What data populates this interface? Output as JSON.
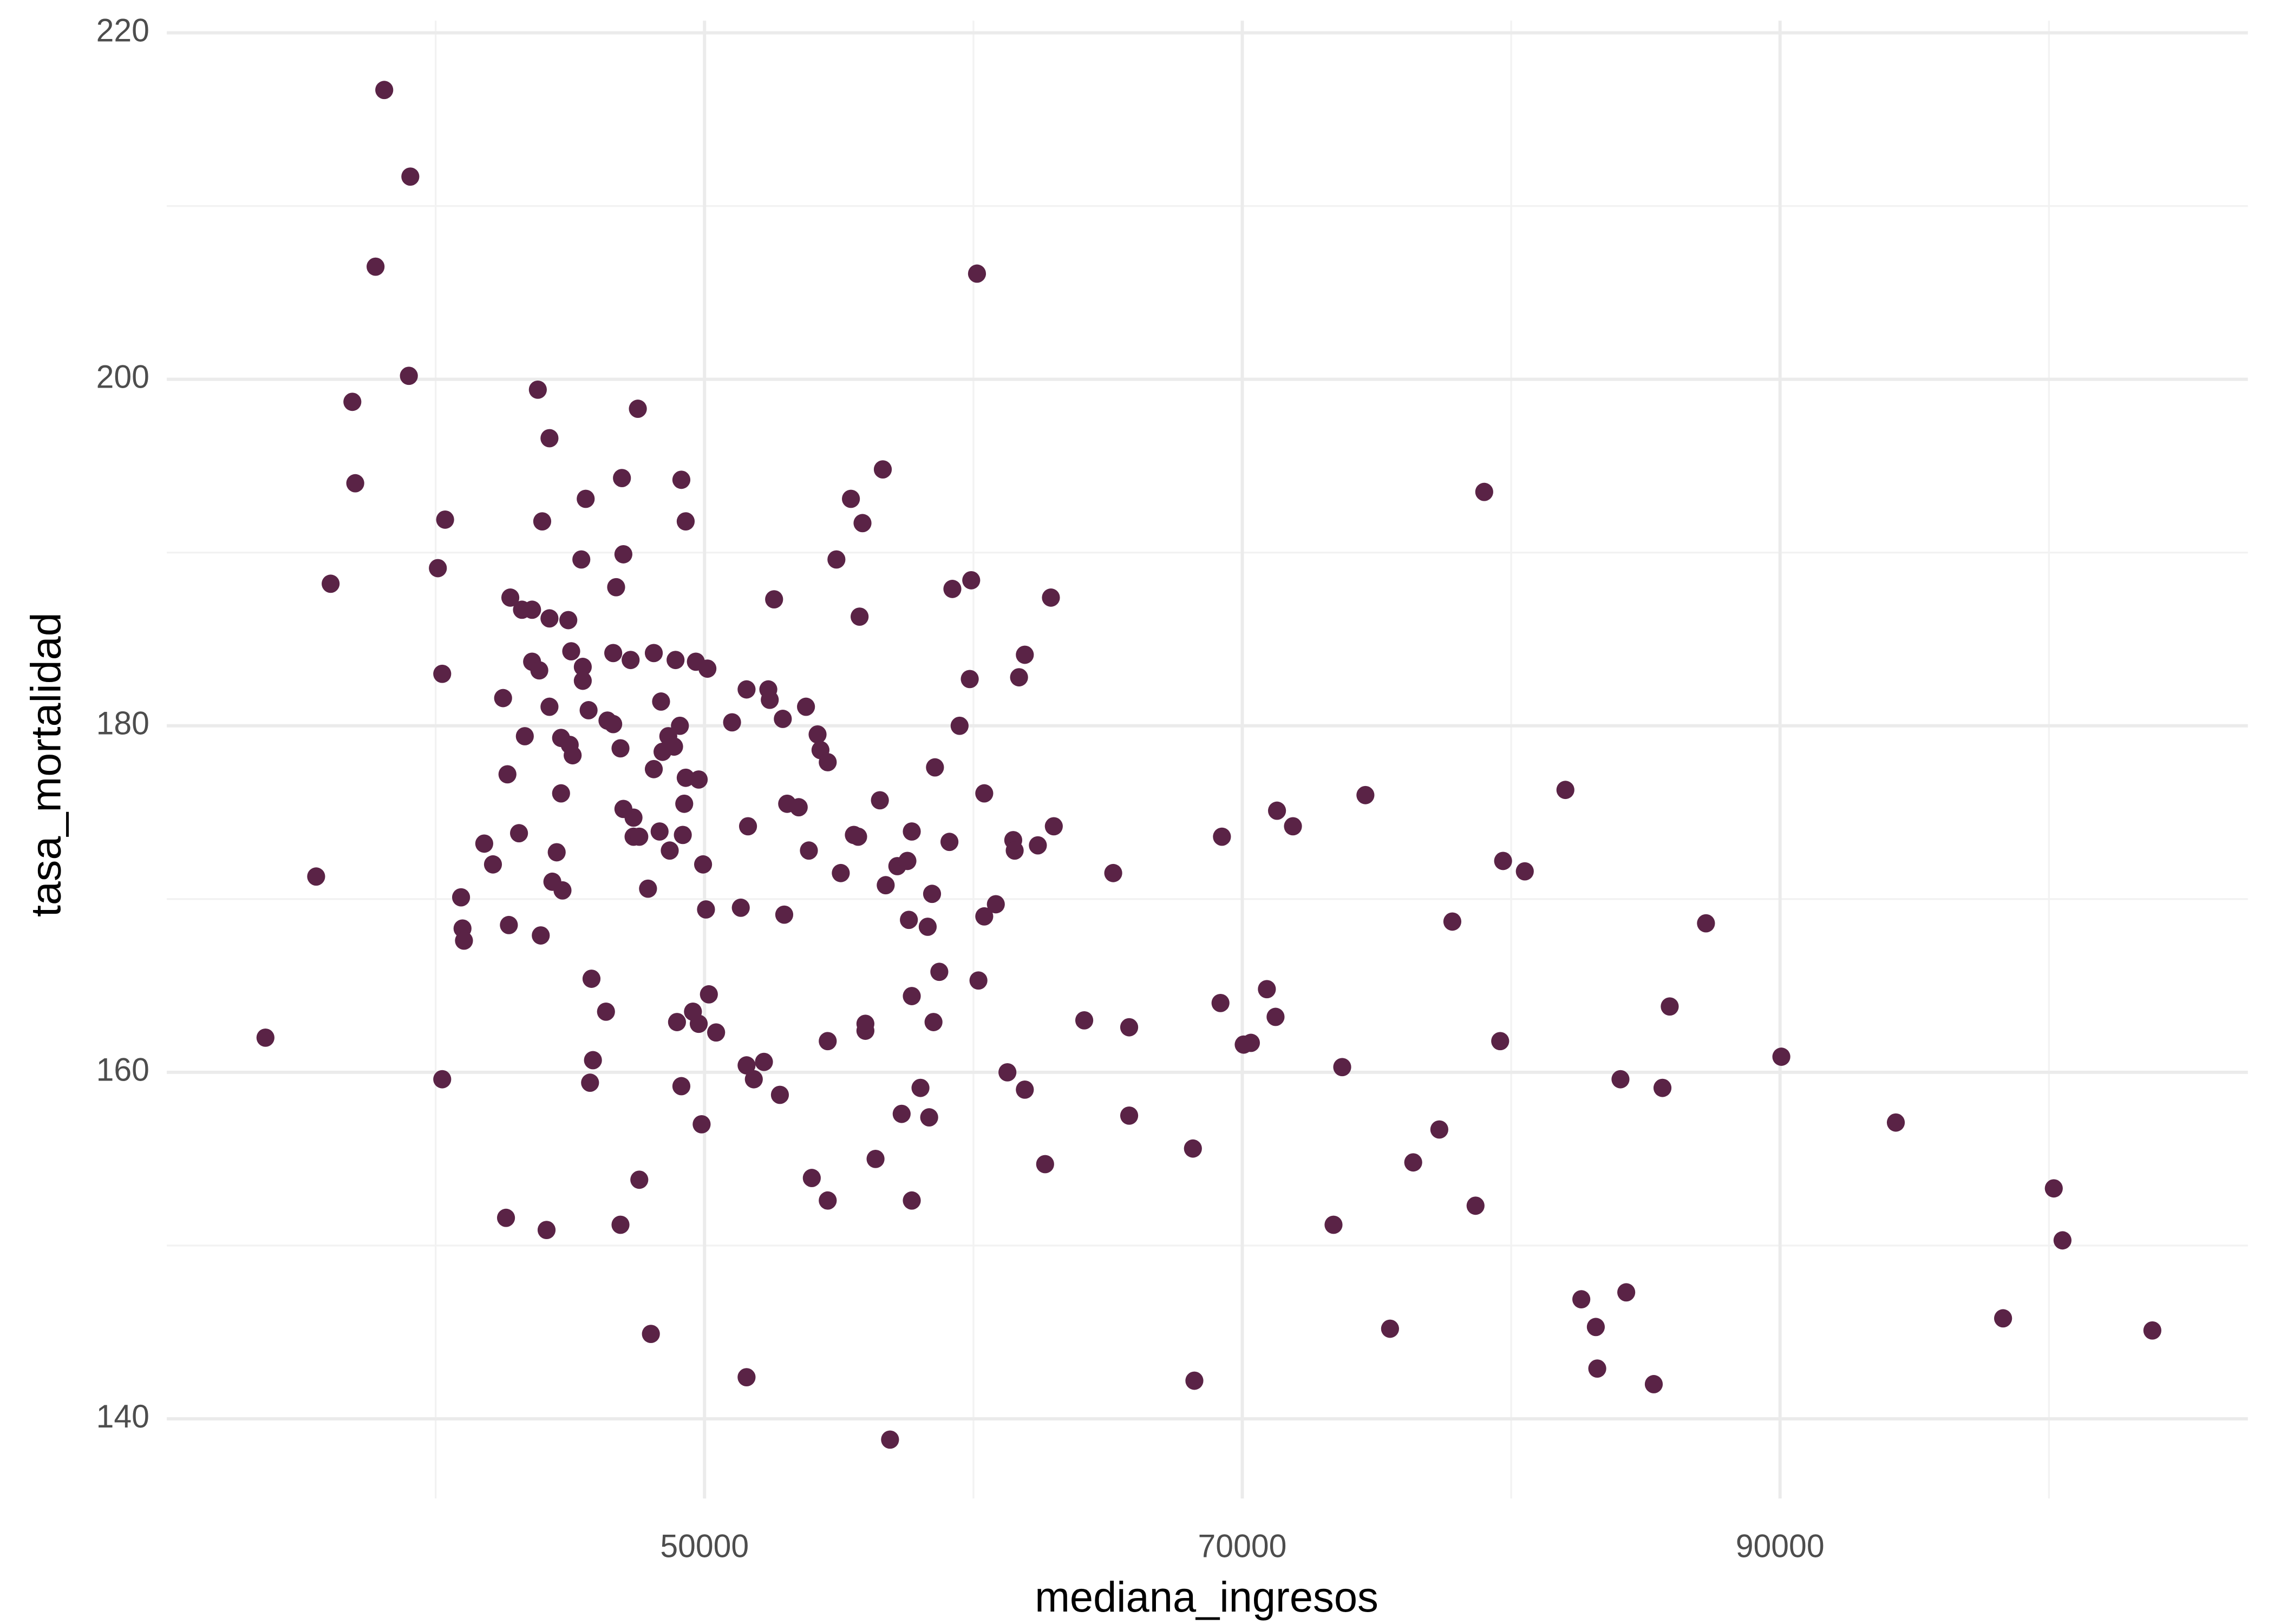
{
  "chart_data": {
    "type": "scatter",
    "x_label": "mediana_ingresos",
    "y_label": "tasa_mortalidad",
    "color": "#5a2346",
    "grid": true,
    "xlim": [
      30000,
      107400
    ],
    "xticks": [
      50000,
      70000,
      90000
    ],
    "ylim": [
      135.4,
      220.7
    ],
    "yticks": [
      140,
      160,
      180,
      200,
      220
    ],
    "x": [
      33670,
      35555,
      36094,
      36902,
      37010,
      37765,
      38088,
      39058,
      39004,
      40082,
      40352,
      40244,
      40244,
      40945,
      40999,
      41053,
      41807,
      42131,
      42508,
      42670,
      42777,
      42723,
      42616,
      43100,
      43209,
      43316,
      43586,
      43586,
      43800,
      43855,
      43963,
      43909,
      44125,
      44233,
      44233,
      44233,
      44340,
      44502,
      44664,
      44664,
      44718,
      44934,
      44987,
      45095,
      45041,
      45472,
      45472,
      45418,
      45580,
      45688,
      45742,
      45796,
      45850,
      46335,
      46389,
      46604,
      46604,
      46712,
      46874,
      46928,
      46982,
      46982,
      46874,
      47251,
      47359,
      47359,
      47574,
      47520,
      47574,
      47898,
      48005,
      48113,
      48113,
      48329,
      48383,
      48437,
      48652,
      48706,
      48868,
      48922,
      48976,
      49084,
      49138,
      49192,
      49245,
      49299,
      49299,
      49138,
      49569,
      49677,
      49784,
      49784,
      49892,
      49946,
      50054,
      50108,
      50162,
      50431,
      51024,
      51348,
      51563,
      51563,
      51617,
      51563,
      51833,
      52210,
      52372,
      52426,
      52587,
      52803,
      52911,
      52964,
      53072,
      53504,
      53773,
      53881,
      53989,
      54204,
      54312,
      54582,
      54582,
      54582,
      54905,
      55067,
      55444,
      55552,
      55713,
      55767,
      55875,
      55983,
      55983,
      56360,
      56522,
      56630,
      56738,
      56899,
      57169,
      57331,
      57546,
      57600,
      57708,
      57708,
      57708,
      58031,
      58300,
      58355,
      58462,
      58516,
      58570,
      58732,
      59109,
      59217,
      59486,
      59864,
      59918,
      60133,
      60187,
      60403,
      60403,
      60834,
      61265,
      61481,
      61535,
      61697,
      61912,
      61912,
      62397,
      62667,
      62882,
      62990,
      64122,
      65200,
      65793,
      65793,
      68164,
      68218,
      69189,
      69243,
      70051,
      70321,
      70914,
      71237,
      71291,
      71884,
      73393,
      73716,
      74579,
      75495,
      76357,
      77328,
      77812,
      78675,
      78998,
      79591,
      79699,
      80507,
      82017,
      82609,
      83148,
      83202,
      84065,
      84280,
      85304,
      85627,
      85897,
      87245,
      90048,
      94306,
      98295,
      100181,
      100505,
      103847
    ],
    "values": [
      162.0,
      171.3,
      188.2,
      198.7,
      194.0,
      206.5,
      216.7,
      211.7,
      200.2,
      189.1,
      191.9,
      183.0,
      159.6,
      170.1,
      168.3,
      167.6,
      173.2,
      172.0,
      181.6,
      177.2,
      187.4,
      168.5,
      151.6,
      173.8,
      186.7,
      179.4,
      186.7,
      183.7,
      199.4,
      183.2,
      191.8,
      167.9,
      150.9,
      196.6,
      186.2,
      181.1,
      171.0,
      172.7,
      176.1,
      179.3,
      170.5,
      186.1,
      178.9,
      178.3,
      184.3,
      183.4,
      182.6,
      189.6,
      193.1,
      180.9,
      159.4,
      165.4,
      160.7,
      163.5,
      180.3,
      180.1,
      184.2,
      188.0,
      178.7,
      194.3,
      189.9,
      175.2,
      151.2,
      183.8,
      174.7,
      173.6,
      173.6,
      198.3,
      153.8,
      170.6,
      144.9,
      184.2,
      177.5,
      173.9,
      181.4,
      178.5,
      179.4,
      172.8,
      178.8,
      183.8,
      162.9,
      180.0,
      194.2,
      173.7,
      175.5,
      191.8,
      177.0,
      159.2,
      163.5,
      183.7,
      176.9,
      162.8,
      157.0,
      172.0,
      169.4,
      183.3,
      164.5,
      162.3,
      180.2,
      169.5,
      182.1,
      160.4,
      174.2,
      142.4,
      159.6,
      160.6,
      182.1,
      181.5,
      187.3,
      158.7,
      180.4,
      169.1,
      175.5,
      175.3,
      181.1,
      172.8,
      153.9,
      179.5,
      178.6,
      177.9,
      161.8,
      152.6,
      189.6,
      171.5,
      193.1,
      173.7,
      173.6,
      186.3,
      191.7,
      162.8,
      162.4,
      155.0,
      175.7,
      194.8,
      170.8,
      138.8,
      171.9,
      157.6,
      172.2,
      168.8,
      173.9,
      164.4,
      152.6,
      159.1,
      168.4,
      157.4,
      170.3,
      162.9,
      177.6,
      165.8,
      173.3,
      187.9,
      180.0,
      182.7,
      188.4,
      206.1,
      165.3,
      176.1,
      169.0,
      169.7,
      160.0,
      173.4,
      172.8,
      182.8,
      184.1,
      159.0,
      173.1,
      154.7,
      187.4,
      174.2,
      163.0,
      171.5,
      162.6,
      157.5,
      155.6,
      142.2,
      164.0,
      173.6,
      161.6,
      161.7,
      164.8,
      163.2,
      175.1,
      174.2,
      151.2,
      160.3,
      176.0,
      145.2,
      154.8,
      156.7,
      168.7,
      152.3,
      193.5,
      161.8,
      172.2,
      171.6,
      176.3,
      146.9,
      145.3,
      142.9,
      159.6,
      147.3,
      142.0,
      159.1,
      163.8,
      168.6,
      160.9,
      157.1,
      145.8,
      153.3,
      150.3,
      145.1
    ]
  }
}
